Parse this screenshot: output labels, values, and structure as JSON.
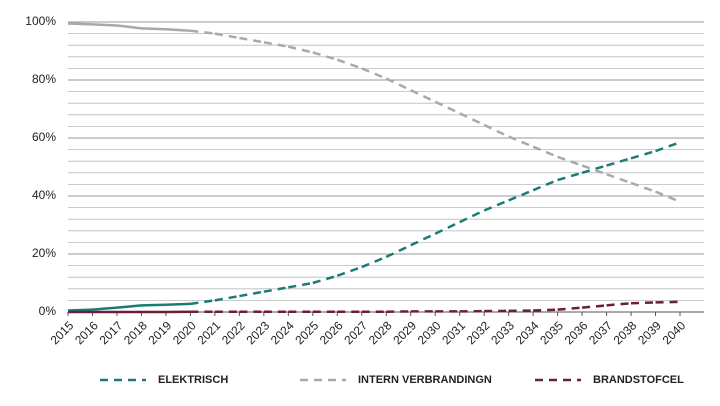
{
  "chart_data": {
    "type": "line",
    "categories": [
      "2015",
      "2016",
      "2017",
      "2018",
      "2019",
      "2020",
      "2021",
      "2022",
      "2023",
      "2024",
      "2025",
      "2026",
      "2027",
      "2028",
      "2029",
      "2030",
      "2031",
      "2032",
      "2033",
      "2034",
      "2035",
      "2036",
      "2037",
      "2038",
      "2039",
      "2040"
    ],
    "solid_until": "2020",
    "series": [
      {
        "name": "ELEKTRISCH",
        "color": "#1b7b75",
        "values": [
          0.5,
          0.8,
          1.5,
          2.3,
          2.5,
          2.8,
          4,
          5.5,
          7,
          8.5,
          10,
          12.5,
          15.5,
          19,
          23,
          27,
          31,
          35,
          38.5,
          42,
          45.5,
          48,
          50.5,
          53,
          55.5,
          58.5
        ]
      },
      {
        "name": "INTERN VERBRANDINGN",
        "color": "#a9a9a9",
        "values": [
          99.5,
          99.2,
          98.8,
          97.8,
          97.5,
          97,
          96,
          94.5,
          93,
          91.5,
          89.5,
          87,
          84,
          80.5,
          76.5,
          72.5,
          68.5,
          64.5,
          60.5,
          57,
          53.5,
          50.5,
          47.5,
          44.5,
          41.5,
          38
        ]
      },
      {
        "name": "BRANDSTOFCEL",
        "color": "#6b1f3d",
        "values": [
          0,
          0,
          0,
          0,
          0,
          0.1,
          0.1,
          0.1,
          0.1,
          0.1,
          0.1,
          0.1,
          0.1,
          0.1,
          0.2,
          0.2,
          0.2,
          0.3,
          0.4,
          0.5,
          0.8,
          1.5,
          2.3,
          3,
          3.3,
          3.5
        ]
      }
    ],
    "ylim": [
      0,
      100
    ],
    "yticks": [
      {
        "value": 0,
        "label": "0%"
      },
      {
        "value": 20,
        "label": "20%"
      },
      {
        "value": 40,
        "label": "40%"
      },
      {
        "value": 60,
        "label": "60%"
      },
      {
        "value": 80,
        "label": "80%"
      },
      {
        "value": 100,
        "label": "100%"
      }
    ],
    "grid": true
  }
}
